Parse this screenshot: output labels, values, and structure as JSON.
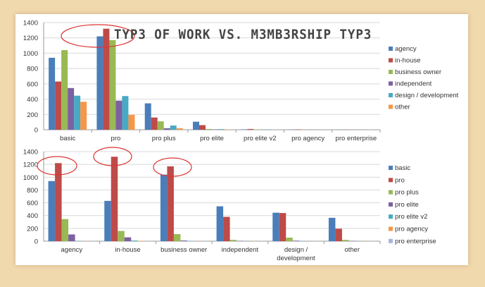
{
  "title": "TYP3 OF WORK VS. M3MB3RSHIP TYP3",
  "chart_data": [
    {
      "type": "bar",
      "ylim": [
        0,
        1400
      ],
      "yticks": [
        "0",
        "200",
        "400",
        "600",
        "800",
        "1000",
        "1200",
        "1400"
      ],
      "grid": true,
      "legend": "right",
      "categories": [
        "basic",
        "pro",
        "pro plus",
        "pro elite",
        "pro elite v2",
        "pro agency",
        "pro enterprise"
      ],
      "series": [
        {
          "name": "agency",
          "color": "#4a7ebb",
          "values": [
            940,
            1220,
            345,
            105,
            5,
            3,
            2
          ]
        },
        {
          "name": "in-house",
          "color": "#be4b48",
          "values": [
            630,
            1320,
            160,
            60,
            10,
            5,
            2
          ]
        },
        {
          "name": "business owner",
          "color": "#98b954",
          "values": [
            1040,
            1170,
            110,
            10,
            5,
            2,
            1
          ]
        },
        {
          "name": "independent",
          "color": "#7d60a0",
          "values": [
            545,
            380,
            20,
            5,
            2,
            1,
            1
          ]
        },
        {
          "name": "design / development",
          "color": "#46aac5",
          "values": [
            445,
            440,
            55,
            8,
            3,
            1,
            1
          ]
        },
        {
          "name": "other",
          "color": "#f79646",
          "values": [
            365,
            195,
            20,
            5,
            2,
            1,
            1
          ]
        }
      ]
    },
    {
      "type": "bar",
      "ylim": [
        0,
        1400
      ],
      "yticks": [
        "0",
        "200",
        "400",
        "600",
        "800",
        "1000",
        "1200",
        "1400"
      ],
      "grid": true,
      "legend": "right",
      "categories": [
        "agency",
        "in-house",
        "business owner",
        "independent",
        "design / development",
        "other"
      ],
      "series": [
        {
          "name": "basic",
          "color": "#4a7ebb",
          "values": [
            940,
            630,
            1040,
            545,
            445,
            365
          ]
        },
        {
          "name": "pro",
          "color": "#be4b48",
          "values": [
            1220,
            1320,
            1170,
            380,
            440,
            195
          ]
        },
        {
          "name": "pro plus",
          "color": "#98b954",
          "values": [
            345,
            160,
            110,
            20,
            55,
            20
          ]
        },
        {
          "name": "pro elite",
          "color": "#7d60a0",
          "values": [
            105,
            60,
            10,
            5,
            8,
            5
          ]
        },
        {
          "name": "pro elite v2",
          "color": "#46aac5",
          "values": [
            5,
            10,
            5,
            2,
            3,
            2
          ]
        },
        {
          "name": "pro agency",
          "color": "#f79646",
          "values": [
            3,
            5,
            2,
            1,
            1,
            1
          ]
        },
        {
          "name": "pro enterprise",
          "color": "#a5b6db",
          "values": [
            2,
            2,
            1,
            1,
            1,
            1
          ]
        }
      ]
    }
  ]
}
